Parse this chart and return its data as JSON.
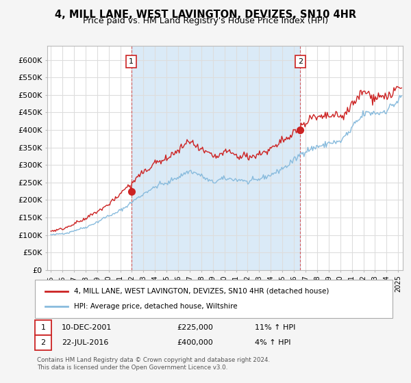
{
  "title": "4, MILL LANE, WEST LAVINGTON, DEVIZES, SN10 4HR",
  "subtitle": "Price paid vs. HM Land Registry's House Price Index (HPI)",
  "title_fontsize": 10.5,
  "subtitle_fontsize": 9,
  "ylabel_ticks": [
    "£0",
    "£50K",
    "£100K",
    "£150K",
    "£200K",
    "£250K",
    "£300K",
    "£350K",
    "£400K",
    "£450K",
    "£500K",
    "£550K",
    "£600K"
  ],
  "ytick_values": [
    0,
    50000,
    100000,
    150000,
    200000,
    250000,
    300000,
    350000,
    400000,
    450000,
    500000,
    550000,
    600000
  ],
  "ylim": [
    0,
    640000
  ],
  "fig_bg_color": "#f5f5f5",
  "plot_bg_color": "#ffffff",
  "shade_color": "#daeaf7",
  "grid_color": "#dddddd",
  "hpi_color": "#88bbdd",
  "price_color": "#cc2222",
  "sale1_x": 2001.95,
  "sale1_y": 225000,
  "sale1_label": "1",
  "sale1_date": "10-DEC-2001",
  "sale1_price": "£225,000",
  "sale1_hpi": "11% ↑ HPI",
  "sale2_x": 2016.55,
  "sale2_y": 400000,
  "sale2_label": "2",
  "sale2_date": "22-JUL-2016",
  "sale2_price": "£400,000",
  "sale2_hpi": "4% ↑ HPI",
  "legend_label1": "4, MILL LANE, WEST LAVINGTON, DEVIZES, SN10 4HR (detached house)",
  "legend_label2": "HPI: Average price, detached house, Wiltshire",
  "footer1": "Contains HM Land Registry data © Crown copyright and database right 2024.",
  "footer2": "This data is licensed under the Open Government Licence v3.0.",
  "xtick_years": [
    1995,
    1996,
    1997,
    1998,
    1999,
    2000,
    2001,
    2002,
    2003,
    2004,
    2005,
    2006,
    2007,
    2008,
    2009,
    2010,
    2011,
    2012,
    2013,
    2014,
    2015,
    2016,
    2017,
    2018,
    2019,
    2020,
    2021,
    2022,
    2023,
    2024,
    2025
  ]
}
